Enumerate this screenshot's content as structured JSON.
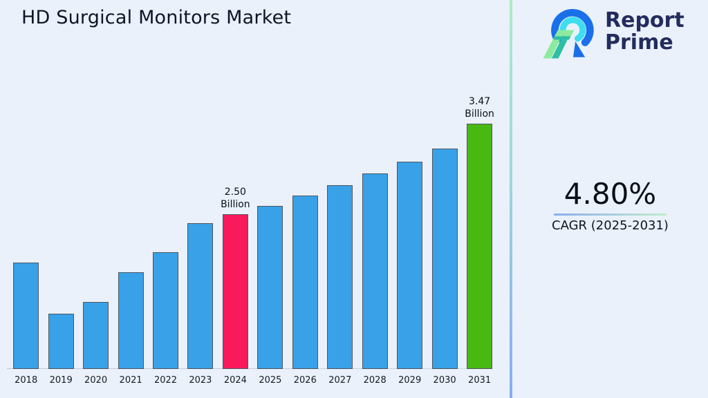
{
  "title": "HD Surgical Monitors Market",
  "logo": {
    "line1": "Report",
    "line2": "Prime"
  },
  "cagr": {
    "value": "4.80%",
    "label": "CAGR (2025-2031)"
  },
  "colors": {
    "background": "#EAF1FB",
    "title_text": "#101426",
    "logo_text": "#232C5C",
    "logo_blue": "#1B6FE8",
    "logo_cyan": "#3FDDF0",
    "logo_light_green": "#8DEB9E",
    "logo_teal": "#2FBEA6",
    "bar_default": "#38A1E8",
    "bar_border": "#4D565F",
    "highlight_2024": "#FA1A5C",
    "highlight_2031": "#47B912",
    "divider_gradient": [
      "#AEEBC4",
      "#A3D6DC",
      "#87ABF5"
    ],
    "underline_gradient": [
      "#8CACEF",
      "#BFEDCB"
    ],
    "axis_line": "#AAB4C4"
  },
  "chart_data": {
    "type": "bar",
    "title": "HD Surgical Monitors Market",
    "unit": "Billion",
    "categories": [
      "2018",
      "2019",
      "2020",
      "2021",
      "2022",
      "2023",
      "2024",
      "2025",
      "2026",
      "2027",
      "2028",
      "2029",
      "2030",
      "2031"
    ],
    "values": [
      1.98,
      1.43,
      1.56,
      1.88,
      2.09,
      2.4,
      2.5,
      2.59,
      2.7,
      2.81,
      2.94,
      3.06,
      3.2,
      3.47
    ],
    "ylim": [
      0.84,
      3.47
    ],
    "grid": false,
    "y_axis_shown": false,
    "legend": "none",
    "annotations": [
      {
        "category": "2024",
        "lines": [
          "2.50",
          "Billion"
        ],
        "color": "#FA1A5C"
      },
      {
        "category": "2031",
        "lines": [
          "3.47",
          "Billion"
        ],
        "color": "#47B912"
      }
    ]
  }
}
